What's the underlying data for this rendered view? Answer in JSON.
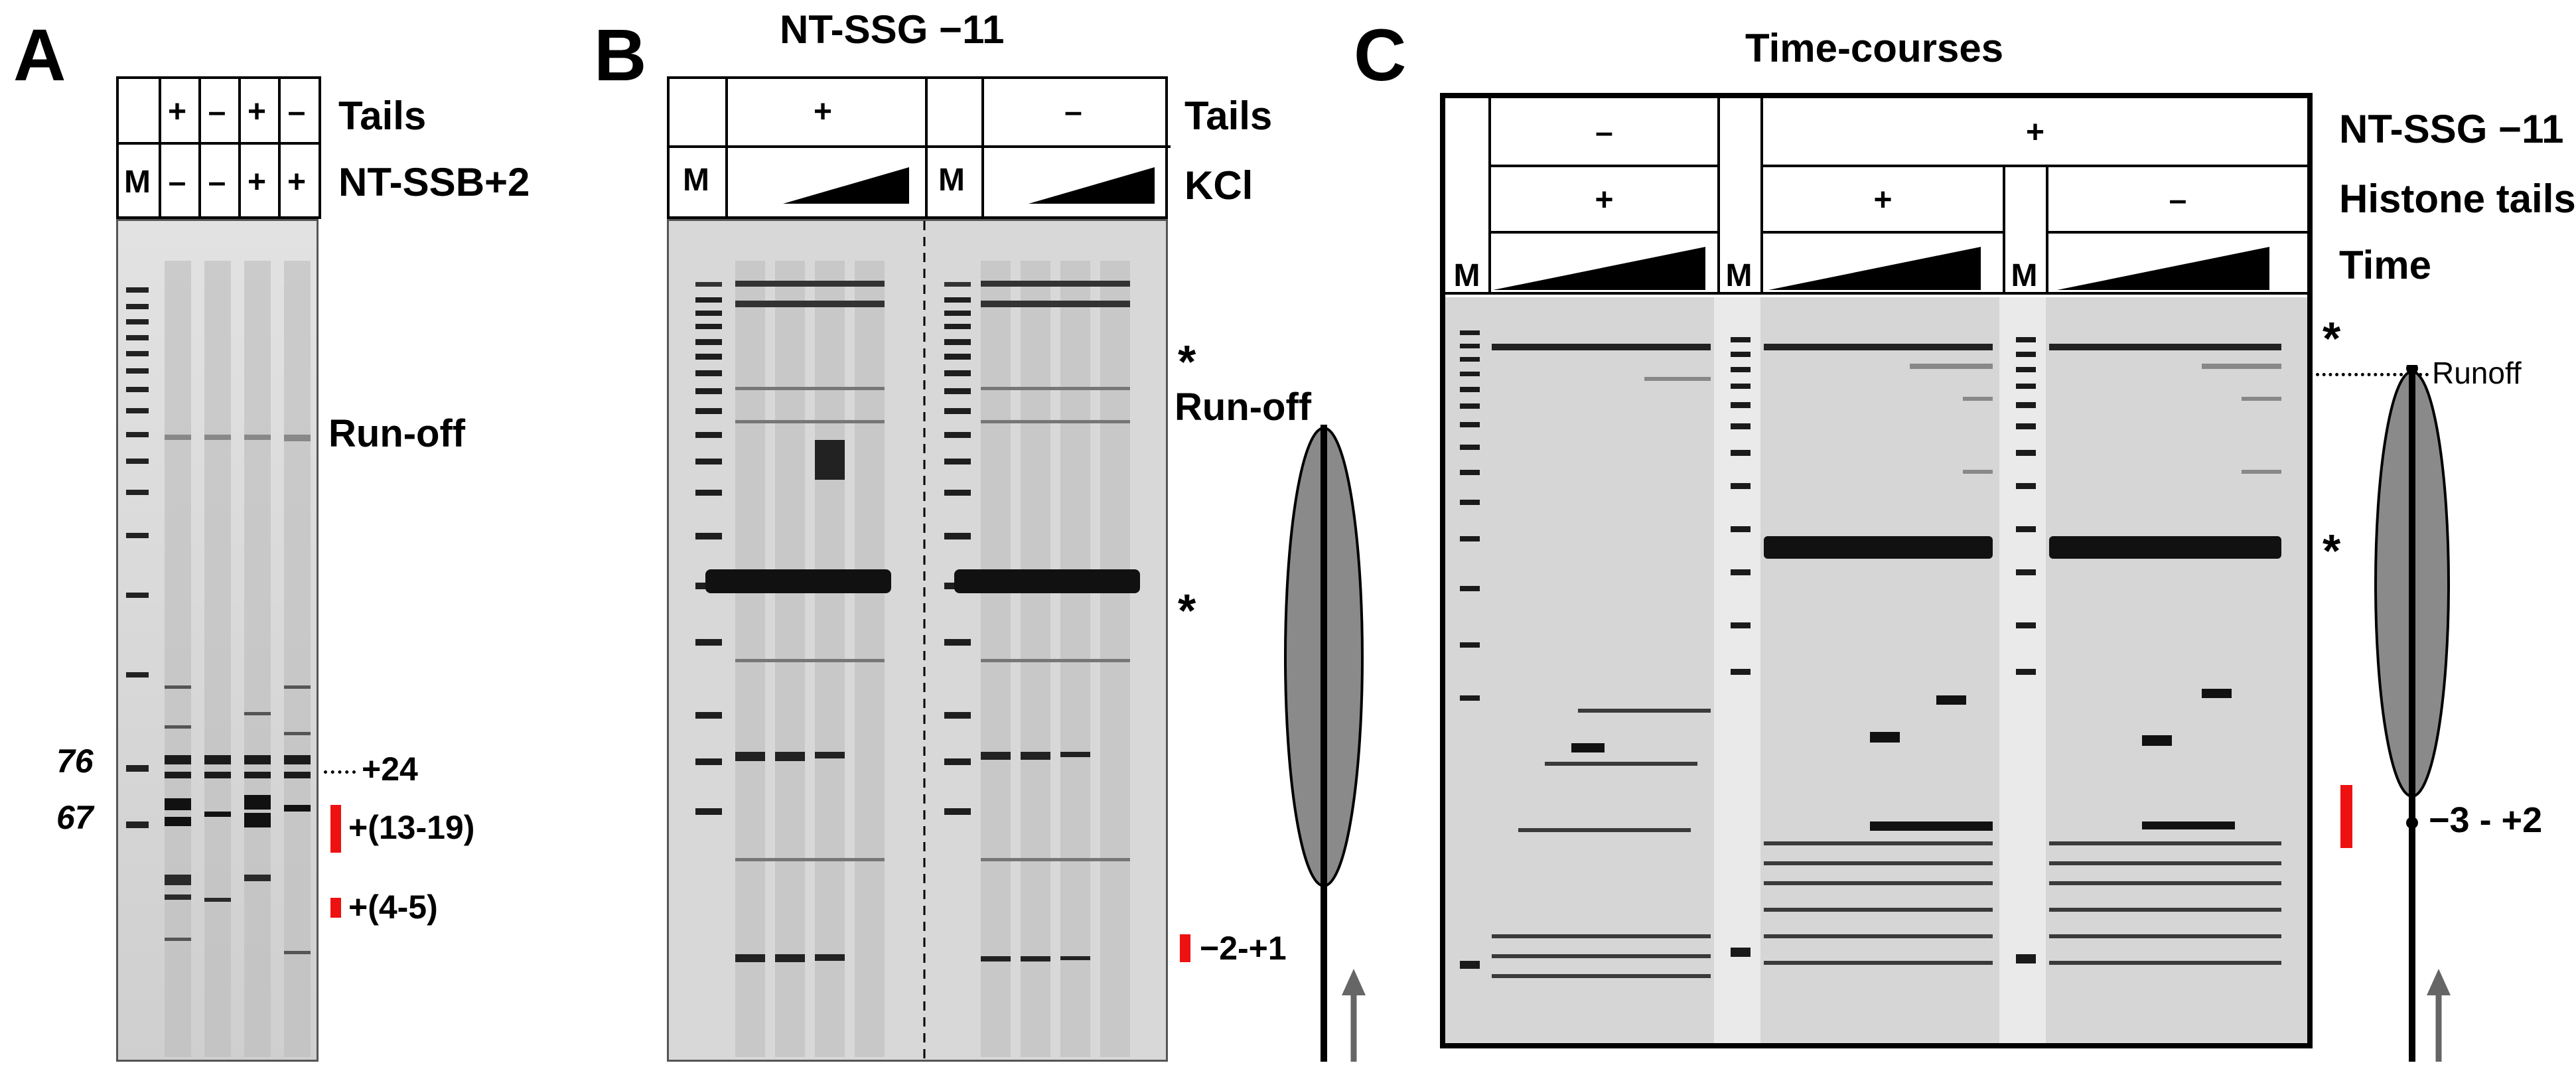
{
  "panels": {
    "A": {
      "letter": "A",
      "row_labels": [
        "Tails",
        "NT-SSB+2"
      ],
      "marker_label": "M",
      "tails_signs": [
        "+",
        "–",
        "+",
        "–"
      ],
      "ssb_signs": [
        "–",
        "–",
        "+",
        "+"
      ],
      "runoff_label": "Run-off",
      "size_markers": [
        "76",
        "67"
      ],
      "band_labels": [
        "+24",
        "+(13-19)",
        "+(4-5)"
      ]
    },
    "B": {
      "letter": "B",
      "title": "NT-SSG −11",
      "row_labels": [
        "Tails",
        "KCl"
      ],
      "marker_label": "M",
      "tails_signs": [
        "+",
        "–"
      ],
      "star": "*",
      "runoff_label": "Run-off",
      "band_labels": [
        "−2-+1"
      ]
    },
    "C": {
      "letter": "C",
      "title": "Time-courses",
      "row_labels": [
        "NT-SSG −11",
        "Histone tails",
        "Time"
      ],
      "marker_label": "M",
      "ssg_signs": [
        "–",
        "+"
      ],
      "tails_signs": [
        "+",
        "+",
        "–"
      ],
      "star": "*",
      "runoff_label": "Runoff",
      "band_labels": [
        "−3 - +2"
      ]
    }
  },
  "colors": {
    "marker_red": "#ee1111",
    "gel_bg": "#d9d9d9",
    "arrow_gray": "#666666"
  }
}
